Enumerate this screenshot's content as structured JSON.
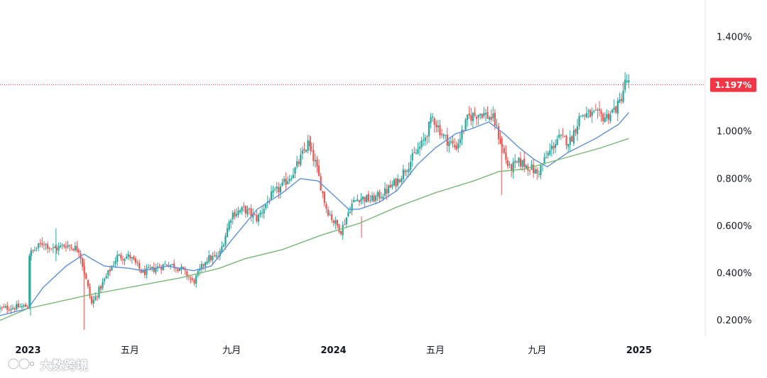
{
  "chart_data": {
    "type": "candlestick",
    "y_unit": "%",
    "ylim": [
      0.13,
      1.49
    ],
    "y_ticks": [
      "1.400%",
      "1.000%",
      "0.800%",
      "0.600%",
      "0.400%",
      "0.200%"
    ],
    "y_tick_values": [
      1.4,
      1.0,
      0.8,
      0.6,
      0.4,
      0.2
    ],
    "x_ticks": [
      {
        "label": "2023",
        "month_index": 12,
        "year": true
      },
      {
        "label": "五月",
        "month_index": 16,
        "year": false
      },
      {
        "label": "九月",
        "month_index": 20,
        "year": false
      },
      {
        "label": "2024",
        "month_index": 24,
        "year": true
      },
      {
        "label": "五月",
        "month_index": 28,
        "year": false
      },
      {
        "label": "九月",
        "month_index": 32,
        "year": false
      },
      {
        "label": "2025",
        "month_index": 36,
        "year": true
      }
    ],
    "x_range_months": [
      10.9,
      38.6
    ],
    "last_price": {
      "label": "1.197%",
      "value": 1.197
    },
    "price_anchors": [
      [
        10.9,
        0.25
      ],
      [
        12.0,
        0.26
      ],
      [
        12.05,
        0.48
      ],
      [
        12.6,
        0.53
      ],
      [
        13.0,
        0.5
      ],
      [
        13.5,
        0.52
      ],
      [
        14.0,
        0.5
      ],
      [
        14.5,
        0.27
      ],
      [
        15.0,
        0.37
      ],
      [
        15.5,
        0.47
      ],
      [
        16.0,
        0.47
      ],
      [
        16.5,
        0.4
      ],
      [
        17.0,
        0.42
      ],
      [
        17.5,
        0.44
      ],
      [
        18.0,
        0.42
      ],
      [
        18.5,
        0.36
      ],
      [
        19.0,
        0.46
      ],
      [
        19.5,
        0.47
      ],
      [
        20.0,
        0.65
      ],
      [
        20.5,
        0.67
      ],
      [
        21.0,
        0.63
      ],
      [
        21.5,
        0.72
      ],
      [
        22.0,
        0.77
      ],
      [
        22.5,
        0.84
      ],
      [
        23.0,
        0.95
      ],
      [
        23.3,
        0.86
      ],
      [
        23.7,
        0.68
      ],
      [
        24.0,
        0.62
      ],
      [
        24.3,
        0.58
      ],
      [
        24.7,
        0.69
      ],
      [
        25.0,
        0.72
      ],
      [
        25.5,
        0.71
      ],
      [
        26.0,
        0.74
      ],
      [
        26.5,
        0.79
      ],
      [
        27.0,
        0.87
      ],
      [
        27.5,
        0.95
      ],
      [
        27.9,
        1.06
      ],
      [
        28.3,
        0.98
      ],
      [
        28.8,
        0.93
      ],
      [
        29.3,
        1.06
      ],
      [
        29.8,
        1.08
      ],
      [
        30.3,
        1.05
      ],
      [
        30.6,
        0.94
      ],
      [
        30.9,
        0.84
      ],
      [
        31.3,
        0.87
      ],
      [
        31.7,
        0.85
      ],
      [
        32.0,
        0.82
      ],
      [
        32.3,
        0.88
      ],
      [
        32.8,
        0.97
      ],
      [
        33.3,
        0.96
      ],
      [
        33.7,
        1.07
      ],
      [
        34.2,
        1.07
      ],
      [
        34.7,
        1.06
      ],
      [
        35.2,
        1.11
      ],
      [
        35.5,
        1.22
      ],
      [
        35.6,
        1.2
      ]
    ],
    "series": [
      {
        "name": "moving-average-short",
        "color": "#5b8fd9",
        "points": [
          [
            10.9,
            0.22
          ],
          [
            12.0,
            0.25
          ],
          [
            12.6,
            0.34
          ],
          [
            13.5,
            0.43
          ],
          [
            14.2,
            0.48
          ],
          [
            14.5,
            0.46
          ],
          [
            15.0,
            0.43
          ],
          [
            16.0,
            0.42
          ],
          [
            16.5,
            0.41
          ],
          [
            17.5,
            0.43
          ],
          [
            18.5,
            0.41
          ],
          [
            19.2,
            0.43
          ],
          [
            20.0,
            0.54
          ],
          [
            21.0,
            0.67
          ],
          [
            22.0,
            0.74
          ],
          [
            22.7,
            0.8
          ],
          [
            23.4,
            0.79
          ],
          [
            24.0,
            0.73
          ],
          [
            24.6,
            0.67
          ],
          [
            25.0,
            0.67
          ],
          [
            25.8,
            0.7
          ],
          [
            26.5,
            0.75
          ],
          [
            27.3,
            0.86
          ],
          [
            28.0,
            0.93
          ],
          [
            28.8,
            0.99
          ],
          [
            29.4,
            1.01
          ],
          [
            30.1,
            1.04
          ],
          [
            30.7,
            0.99
          ],
          [
            31.3,
            0.93
          ],
          [
            31.9,
            0.88
          ],
          [
            32.4,
            0.85
          ],
          [
            33.2,
            0.91
          ],
          [
            34.3,
            0.97
          ],
          [
            35.2,
            1.03
          ],
          [
            35.6,
            1.08
          ]
        ]
      },
      {
        "name": "moving-average-long",
        "color": "#79b879",
        "points": [
          [
            10.9,
            0.2
          ],
          [
            12.0,
            0.25
          ],
          [
            14.5,
            0.31
          ],
          [
            16.0,
            0.34
          ],
          [
            18.0,
            0.38
          ],
          [
            19.5,
            0.42
          ],
          [
            20.5,
            0.46
          ],
          [
            22.0,
            0.5
          ],
          [
            23.5,
            0.56
          ],
          [
            25.0,
            0.61
          ],
          [
            26.5,
            0.68
          ],
          [
            28.0,
            0.74
          ],
          [
            29.5,
            0.79
          ],
          [
            30.5,
            0.83
          ],
          [
            31.5,
            0.84
          ],
          [
            32.5,
            0.87
          ],
          [
            33.5,
            0.9
          ],
          [
            34.5,
            0.93
          ],
          [
            35.6,
            0.97
          ]
        ]
      }
    ],
    "colors": {
      "up": "#26a69a",
      "down": "#ef5350",
      "price_line": "#f23645",
      "price_label_bg": "#f23645"
    }
  },
  "watermark": {
    "text": "大数跨境"
  }
}
